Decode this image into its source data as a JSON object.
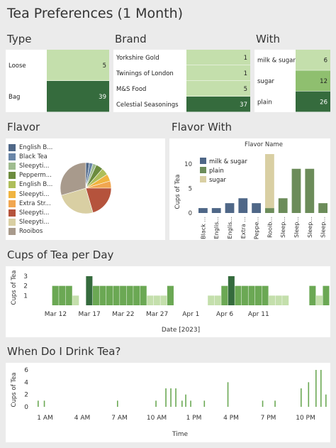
{
  "title": "Tea Preferences (1 Month)",
  "sections": {
    "type": "Type",
    "brand": "Brand",
    "with": "With",
    "flavor": "Flavor",
    "flavor_with": "Flavor With",
    "per_day": "Cups of Tea per Day",
    "when": "When Do I Drink Tea?"
  },
  "colors": {
    "light": "#c4dfac",
    "mid": "#8fbf6f",
    "dark": "#356b3d",
    "bar": "#6ba854",
    "bar_light": "#c4dfac",
    "bar_dark": "#356b3d"
  },
  "chart_data": [
    {
      "id": "type",
      "type": "table",
      "categories": [
        "Loose",
        "Bag"
      ],
      "values": [
        5,
        39
      ]
    },
    {
      "id": "brand",
      "type": "table",
      "categories": [
        "Yorkshire Gold",
        "Twinings of London",
        "M&S Food",
        "Celestial Seasonings"
      ],
      "values": [
        1,
        1,
        5,
        37
      ]
    },
    {
      "id": "with",
      "type": "table",
      "categories": [
        "milk & sugar",
        "sugar",
        "plain"
      ],
      "values": [
        6,
        12,
        26
      ]
    },
    {
      "id": "flavor",
      "type": "pie",
      "legend": [
        {
          "label": "English B...",
          "color": "#4f6787"
        },
        {
          "label": "Black Tea",
          "color": "#6a86a8"
        },
        {
          "label": "Sleepyti...",
          "color": "#9fbc8f"
        },
        {
          "label": "Pepperm...",
          "color": "#6c8c3e"
        },
        {
          "label": "English B...",
          "color": "#aebe5a"
        },
        {
          "label": "Sleepyti...",
          "color": "#f0b440"
        },
        {
          "label": "Extra Str...",
          "color": "#f1a650"
        },
        {
          "label": "Sleepyti...",
          "color": "#b5533c"
        },
        {
          "label": "Sleepyti...",
          "color": "#d9cfa3"
        },
        {
          "label": "Rooibos",
          "color": "#a89a8c"
        }
      ],
      "values": [
        1,
        1,
        1,
        2,
        2,
        2,
        2,
        9,
        11,
        13
      ]
    },
    {
      "id": "flavor_with",
      "type": "bar",
      "title": "Flavor Name",
      "ylabel": "Cups of Tea",
      "ylim": [
        0,
        12
      ],
      "yticks": [
        0,
        5,
        10
      ],
      "categories": [
        "Black ...",
        "Englis...",
        "Englis...",
        "Extra ...",
        "Peppe...",
        "Rooib...",
        "Sleep...",
        "Sleep...",
        "Sleep...",
        "Sleep..."
      ],
      "series": [
        {
          "name": "milk & sugar",
          "color": "#4f6787",
          "values": [
            0,
            1,
            2,
            0,
            2,
            0,
            0,
            0,
            0,
            0
          ]
        },
        {
          "name": "plain",
          "color": "#6c8c5a",
          "values": [
            0,
            0,
            0,
            0,
            0,
            1,
            3,
            9,
            9,
            2
          ]
        },
        {
          "name": "sugar",
          "color": "#d9cfa3",
          "values": [
            0,
            0,
            0,
            0,
            0,
            11,
            0,
            0,
            0,
            0
          ]
        }
      ],
      "extra_series": [
        {
          "name": "",
          "color": "#4f6787",
          "values": [
            1,
            0,
            0,
            3,
            0,
            0,
            0,
            0,
            0,
            0
          ]
        }
      ]
    },
    {
      "id": "per_day",
      "type": "bar",
      "xlabel": "Date [2023]",
      "ylabel": "Cups of Tea",
      "ylim": [
        0,
        3
      ],
      "yticks": [
        1,
        2,
        3
      ],
      "x_tick_labels": [
        "Mar 12",
        "Mar 17",
        "Mar 22",
        "Mar 27",
        "Apr 1",
        "Apr 6",
        "Apr 11"
      ],
      "values": [
        0,
        0,
        0,
        2,
        2,
        2,
        1,
        0,
        3,
        2,
        2,
        2,
        2,
        2,
        2,
        2,
        2,
        1,
        1,
        1,
        2,
        0,
        0,
        0,
        0,
        0,
        1,
        1,
        2,
        3,
        2,
        2,
        2,
        2,
        2,
        1,
        1,
        1,
        0,
        0,
        0,
        2,
        1,
        2
      ],
      "levels": [
        0,
        0,
        0,
        1,
        1,
        1,
        0,
        0,
        2,
        1,
        1,
        1,
        1,
        1,
        1,
        1,
        1,
        0,
        0,
        0,
        1,
        0,
        0,
        0,
        0,
        0,
        0,
        0,
        1,
        2,
        1,
        1,
        1,
        1,
        1,
        0,
        0,
        0,
        0,
        0,
        0,
        1,
        0,
        1
      ]
    },
    {
      "id": "when",
      "type": "bar",
      "xlabel": "Time",
      "ylabel": "Cups of Tea",
      "ylim": [
        0,
        6
      ],
      "yticks": [
        0,
        2,
        4,
        6
      ],
      "x_tick_labels": [
        "1 AM",
        "4 AM",
        "7 AM",
        "10 AM",
        "1 PM",
        "4 PM",
        "7 PM",
        "10 PM"
      ],
      "x_hours": [
        23.6,
        0.4,
        0.9,
        6.8,
        9.9,
        10.7,
        11.1,
        11.5,
        12.0,
        12.3,
        12.7,
        13.8,
        15.7,
        18.5,
        19.5,
        21.6,
        22.2,
        22.8,
        23.2
      ],
      "values": [
        2,
        1,
        1,
        1,
        1,
        3,
        3,
        3,
        1,
        2,
        1,
        1,
        4,
        1,
        1,
        3,
        4,
        6,
        6
      ]
    }
  ]
}
